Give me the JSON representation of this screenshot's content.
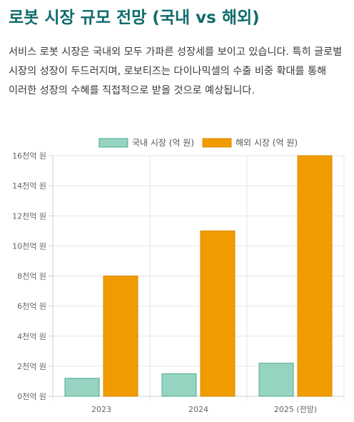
{
  "page": {
    "title": "로봇 시장 규모 전망 (국내 vs 해외)",
    "description": "서비스 로봇 시장은 국내외 모두 가파른 성장세를 보이고 있습니다. 특히 글로벌 시장의 성장이 두드러지며, 로보티즈는 다이나믹셀의 수출 비중 확대를 통해 이러한 성장의 수혜를 직접적으로 받을 것으로 예상됩니다."
  },
  "chart_data": {
    "type": "bar",
    "categories": [
      "2023",
      "2024",
      "2025 (전망)"
    ],
    "series": [
      {
        "name": "국내 시장 (억 원)",
        "values": [
          1.2,
          1.5,
          2.2
        ],
        "color": "#96d3c0",
        "border": "#4fa894"
      },
      {
        "name": "해외 시장 (억 원)",
        "values": [
          8,
          11,
          16
        ],
        "color": "#f09c00",
        "border": "#d98a00"
      }
    ],
    "ylim": [
      0,
      16
    ],
    "y_ticks": [
      0,
      2,
      4,
      6,
      8,
      10,
      12,
      14,
      16
    ],
    "y_tick_suffix": "천억 원",
    "grid": true,
    "legend": "top"
  }
}
